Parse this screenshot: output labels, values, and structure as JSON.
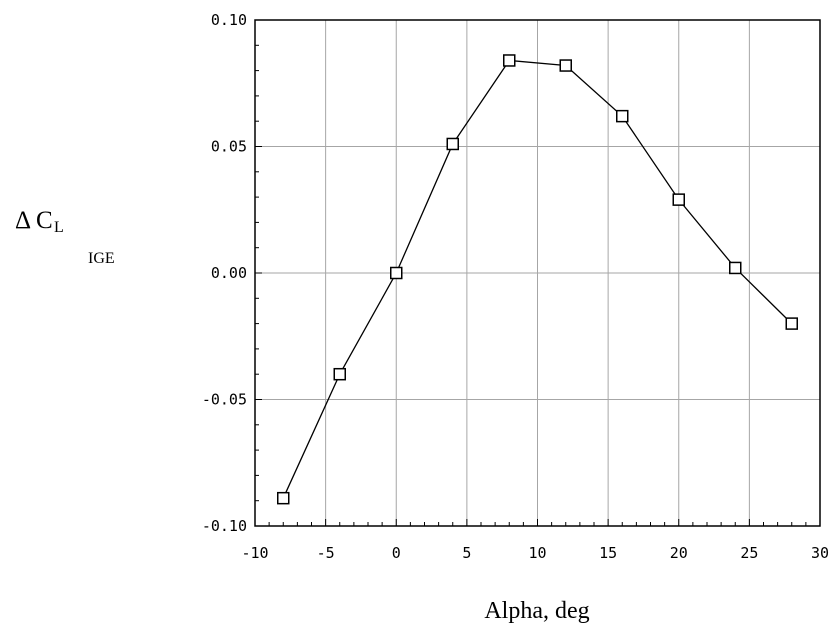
{
  "chart_data": {
    "type": "line",
    "xlabel": "Alpha, deg",
    "ylabel": {
      "prefix": "Δ",
      "main": "C",
      "subscript": "L",
      "subsubscript": "IGE"
    },
    "xlim": [
      -10,
      30
    ],
    "ylim": [
      -0.1,
      0.1
    ],
    "x_ticks": [
      -10,
      -5,
      0,
      5,
      10,
      15,
      20,
      25,
      30
    ],
    "x_tick_labels": [
      "-10",
      "-5",
      "0",
      "5",
      "10",
      "15",
      "20",
      "25",
      "30"
    ],
    "y_ticks": [
      -0.1,
      -0.05,
      0.0,
      0.05,
      0.1
    ],
    "y_tick_labels": [
      "-0.10",
      "-0.05",
      "0.00",
      "0.05",
      "0.10"
    ],
    "grid": true,
    "marker": "open-square",
    "series": [
      {
        "x": [
          -8,
          -4,
          0,
          4,
          8,
          12,
          16,
          20,
          24,
          28
        ],
        "y": [
          -0.089,
          -0.04,
          0.0,
          0.051,
          0.084,
          0.082,
          0.062,
          0.029,
          0.002,
          -0.02
        ]
      }
    ]
  }
}
